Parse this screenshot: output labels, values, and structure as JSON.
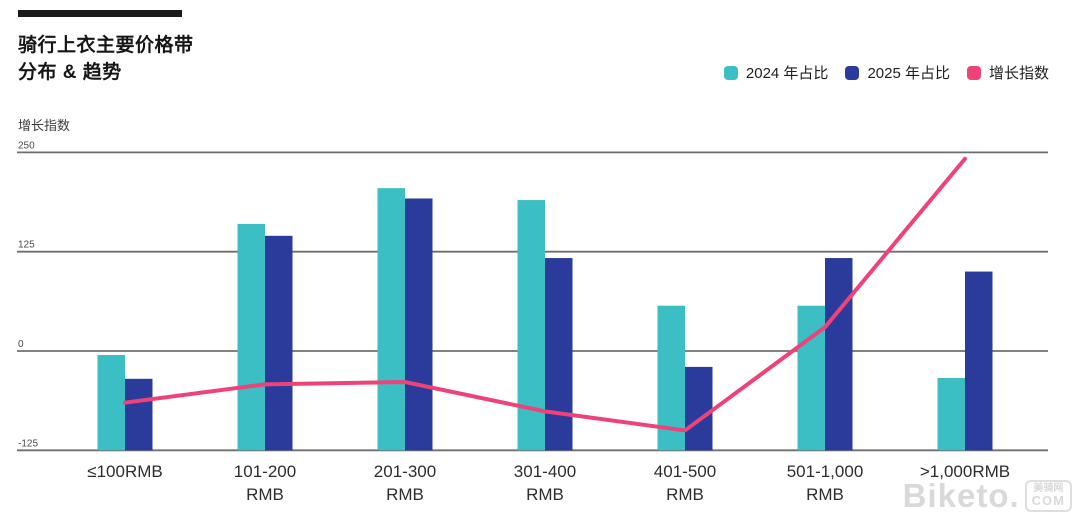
{
  "header": {
    "accent_bar_color": "#1a1a1a",
    "title_line1": "骑行上衣主要价格带",
    "title_line2": "分布 & 趋势"
  },
  "legend": [
    {
      "label": "2024 年占比",
      "color": "#3bbec4"
    },
    {
      "label": "2025 年占比",
      "color": "#2a3b9b"
    },
    {
      "label": "增长指数",
      "color": "#ee4378"
    }
  ],
  "watermark": {
    "brand": "Biketo.",
    "badge_line1": "美骑网",
    "badge_line2": "COM"
  },
  "chart_data": {
    "type": "bar",
    "subtype": "grouped-bars-with-line",
    "title": "骑行上衣主要价格带分布 & 趋势",
    "ylabel": "增长指数",
    "xlabel": "",
    "ylim": [
      -125,
      250
    ],
    "y_ticks": [
      250,
      125,
      0,
      -125
    ],
    "grid": "horizontal",
    "legend_position": "top-right",
    "bars_baseline": -125,
    "categories": [
      "≤100RMB",
      "101-200 RMB",
      "201-300 RMB",
      "301-400 RMB",
      "401-500 RMB",
      "501-1,000 RMB",
      ">1,000RMB"
    ],
    "categories_display": [
      [
        "≤100RMB"
      ],
      [
        "101-200",
        "RMB"
      ],
      [
        "201-300",
        "RMB"
      ],
      [
        "301-400",
        "RMB"
      ],
      [
        "401-500",
        "RMB"
      ],
      [
        "501-1,000",
        "RMB"
      ],
      [
        ">1,000RMB"
      ]
    ],
    "series": [
      {
        "name": "2024 年占比",
        "type": "bar",
        "color": "#3bbec4",
        "values": [
          -5,
          160,
          205,
          190,
          57,
          57,
          -34
        ]
      },
      {
        "name": "2025 年占比",
        "type": "bar",
        "color": "#2a3b9b",
        "values": [
          -35,
          145,
          192,
          117,
          -20,
          117,
          100
        ]
      },
      {
        "name": "增长指数",
        "type": "line",
        "color": "#ee4378",
        "values": [
          -65,
          -42,
          -39,
          -76,
          -100,
          30,
          242
        ]
      }
    ]
  },
  "colors": {
    "gridline": "#6f6f6f",
    "background": "#ffffff"
  }
}
